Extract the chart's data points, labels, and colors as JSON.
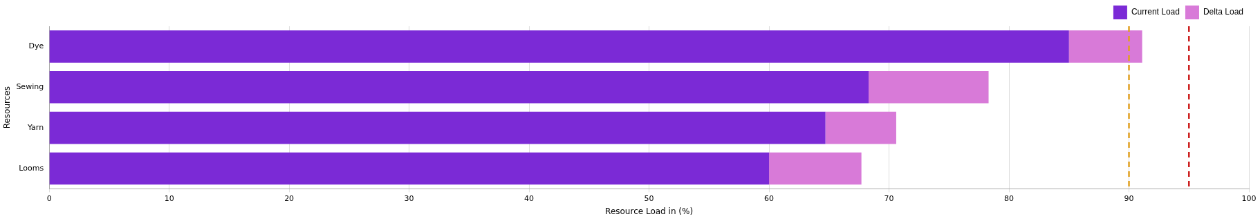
{
  "chart_data": {
    "type": "bar",
    "orientation": "horizontal",
    "stacked": true,
    "xlabel": "Resource Load in (%)",
    "ylabel": "Resources",
    "categories": [
      "Dye",
      "Sewing",
      "Yarn",
      "Looms"
    ],
    "series": [
      {
        "name": "Current Load",
        "color": "#7b2ad6",
        "values": [
          85,
          68.3,
          64.7,
          60
        ]
      },
      {
        "name": "Delta Load",
        "color": "#d87ad8",
        "values": [
          6.1,
          10,
          5.9,
          7.7
        ]
      }
    ],
    "xlim": [
      0,
      100
    ],
    "xticks": [
      0,
      10,
      20,
      30,
      40,
      50,
      60,
      70,
      80,
      90,
      100
    ],
    "grid": "x",
    "legend": "top right",
    "ref_lines": [
      {
        "axis": "x",
        "value": 90,
        "color": "#e0a020",
        "line_style": "dashed"
      },
      {
        "axis": "x",
        "value": 95,
        "color": "#cc2020",
        "line_style": "dashed"
      }
    ]
  }
}
